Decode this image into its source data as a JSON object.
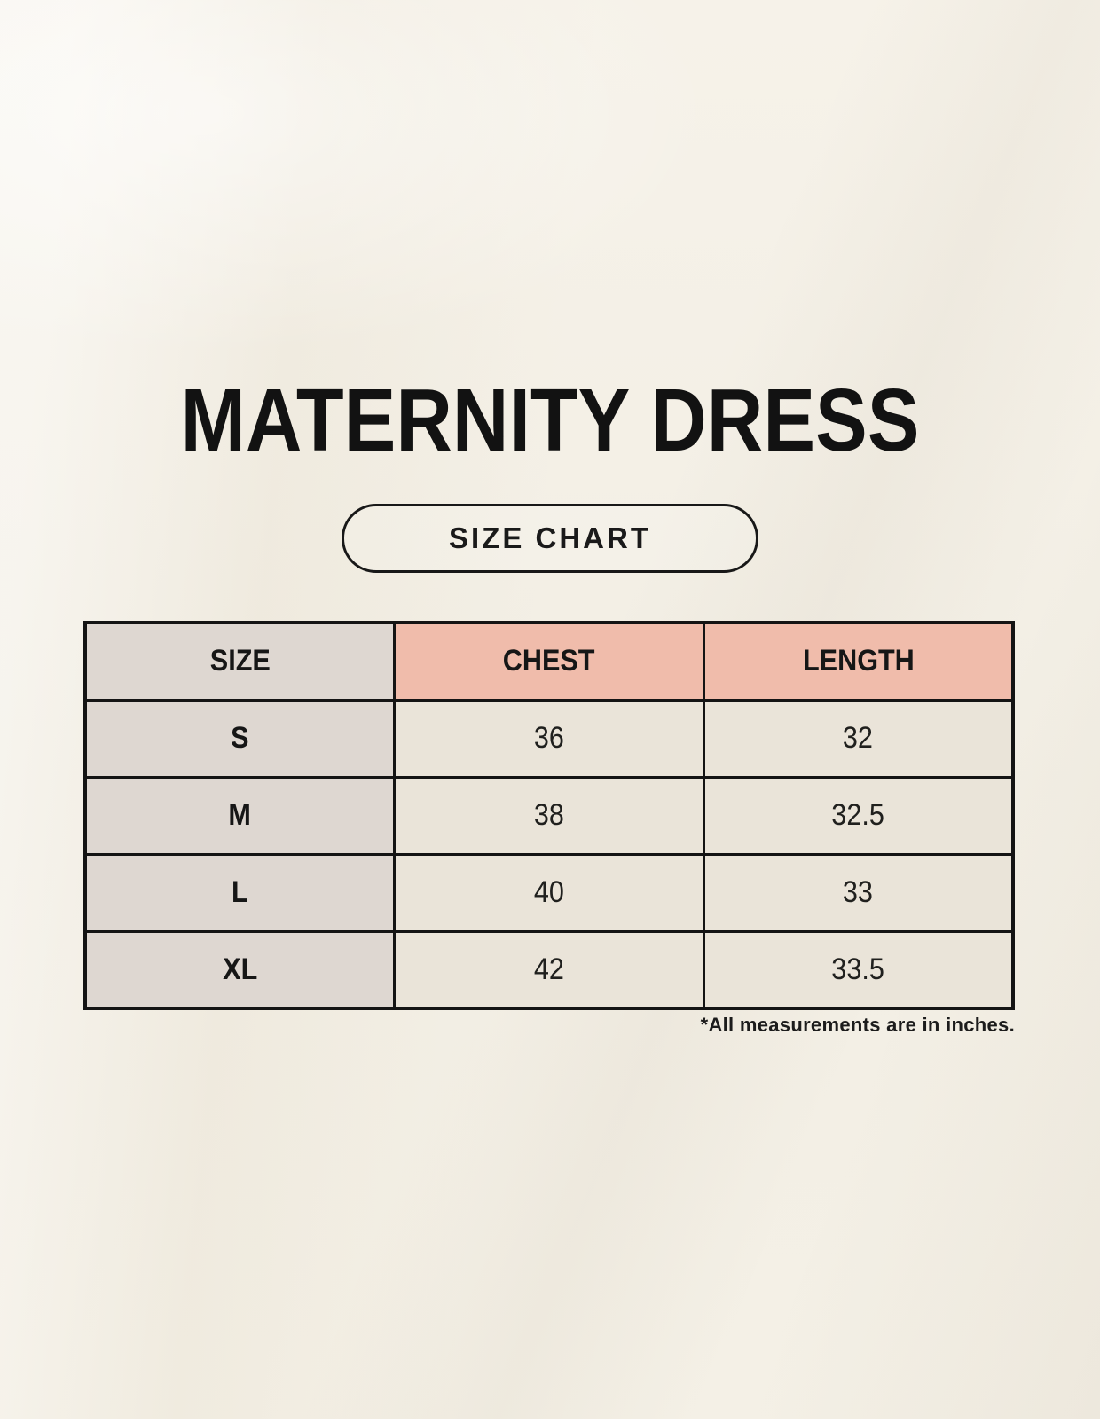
{
  "title": "MATERNITY DRESS",
  "badge": {
    "label": "SIZE CHART"
  },
  "chart_data": {
    "type": "table",
    "title": "MATERNITY DRESS",
    "columns": [
      "SIZE",
      "CHEST",
      "LENGTH"
    ],
    "rows": [
      [
        "S",
        "36",
        "32"
      ],
      [
        "M",
        "38",
        "32.5"
      ],
      [
        "L",
        "40",
        "33"
      ],
      [
        "XL",
        "42",
        "33.5"
      ]
    ],
    "note": "*All measurements are in inches."
  },
  "colors": {
    "background": "#f4f0e6",
    "size_column_bg": "#ded7d1",
    "measure_header_bg": "#f0bcab",
    "value_cell_bg": "#eae4d9",
    "border": "#141414",
    "text": "#161616"
  }
}
